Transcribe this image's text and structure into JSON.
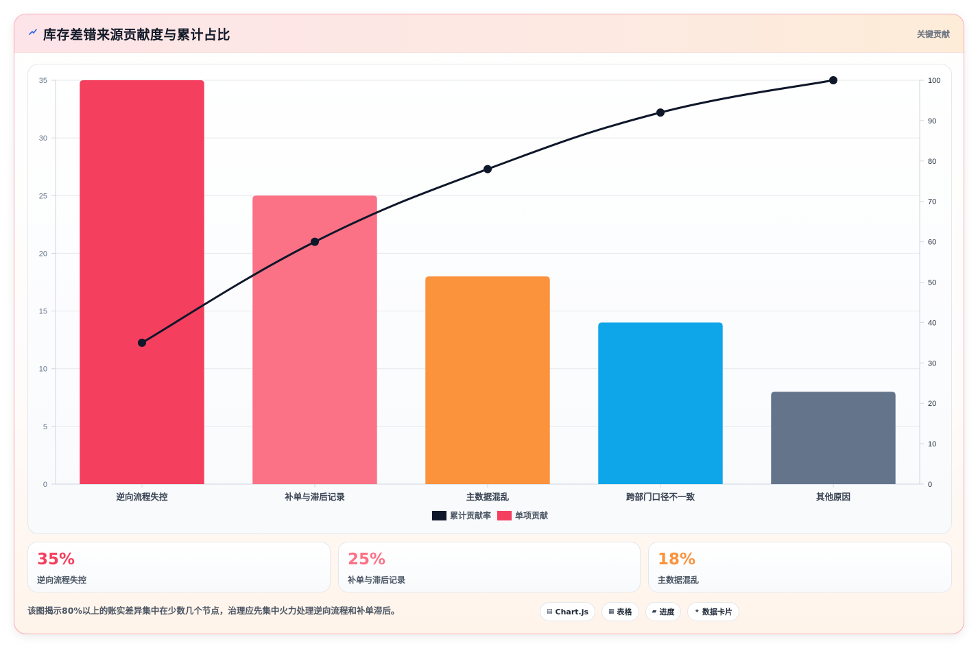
{
  "header": {
    "icon": "lightning-icon",
    "title": "库存差错来源贡献度与累计占比",
    "tag": "关键贡献"
  },
  "chart_data": {
    "type": "bar",
    "title": "",
    "categories": [
      "逆向流程失控",
      "补单与滞后记录",
      "主数据混乱",
      "跨部门口径不一致",
      "其他原因"
    ],
    "series": [
      {
        "name": "单项贡献",
        "type": "bar",
        "axis": "left",
        "values": [
          35,
          25,
          18,
          14,
          8
        ],
        "colors": [
          "#f43f5e",
          "#fb7185",
          "#fb923c",
          "#0ea5e9",
          "#64748b"
        ]
      },
      {
        "name": "累计贡献率",
        "type": "line",
        "axis": "right",
        "values": [
          35,
          60,
          78,
          92,
          100
        ],
        "color": "#0f172a"
      }
    ],
    "y_left": {
      "min": 0,
      "max": 35,
      "step": 5
    },
    "y_right": {
      "min": 0,
      "max": 100,
      "step": 10
    },
    "legend_position": "bottom",
    "legend_colors": {
      "line": "#0f172a",
      "bar": "#f43f5e"
    },
    "grid": true
  },
  "stats": [
    {
      "value": "35%",
      "label": "逆向流程失控",
      "color": "#f43f5e"
    },
    {
      "value": "25%",
      "label": "补单与滞后记录",
      "color": "#fb7185"
    },
    {
      "value": "18%",
      "label": "主数据混乱",
      "color": "#fb923c"
    }
  ],
  "footer": {
    "text": "该图揭示80%以上的账实差异集中在少数几个节点，治理应先集中火力处理逆向流程和补单滞后。",
    "chips": [
      {
        "icon": "▤",
        "label": "Chart.js"
      },
      {
        "icon": "▦",
        "label": "表格"
      },
      {
        "icon": "▰",
        "label": "进度"
      },
      {
        "icon": "✦",
        "label": "数据卡片"
      }
    ]
  }
}
